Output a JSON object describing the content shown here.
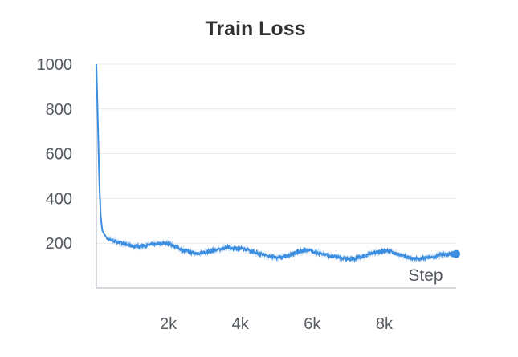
{
  "chart_data": {
    "type": "line",
    "title": "Train Loss",
    "xlabel": "Step",
    "ylabel": "",
    "xlim": [
      0,
      10000
    ],
    "ylim": [
      0,
      1000
    ],
    "x_ticks": [
      {
        "value": 2000,
        "label": "2k"
      },
      {
        "value": 4000,
        "label": "4k"
      },
      {
        "value": 6000,
        "label": "6k"
      },
      {
        "value": 8000,
        "label": "8k"
      }
    ],
    "y_ticks": [
      {
        "value": 200,
        "label": "200"
      },
      {
        "value": 400,
        "label": "400"
      },
      {
        "value": 600,
        "label": "600"
      },
      {
        "value": 800,
        "label": "800"
      },
      {
        "value": 1000,
        "label": "1000"
      }
    ],
    "grid": true,
    "legend": "none",
    "colors": {
      "line": "#3c8ee0",
      "raw_band": "#cfe2f6",
      "grid": "#e7e9ec",
      "axis": "#d5d8dc",
      "text": "#555a61",
      "title": "#333333"
    },
    "series": [
      {
        "x": [
          0,
          40,
          80,
          120,
          160,
          200,
          260,
          320,
          400,
          500,
          600,
          800,
          1000,
          1200,
          1400,
          1600,
          1800,
          2000,
          2200,
          2400,
          2600,
          2800,
          3000,
          3200,
          3400,
          3600,
          3800,
          4000,
          4200,
          4400,
          4600,
          4800,
          5000,
          5200,
          5400,
          5600,
          5800,
          6000,
          6200,
          6400,
          6600,
          6800,
          7000,
          7200,
          7400,
          7600,
          7800,
          8000,
          8200,
          8400,
          8600,
          8800,
          9000,
          9200,
          9400,
          9600,
          9800,
          10000
        ],
        "values": [
          1000,
          750,
          480,
          320,
          260,
          245,
          230,
          220,
          215,
          210,
          205,
          195,
          188,
          185,
          190,
          195,
          200,
          200,
          185,
          170,
          160,
          155,
          158,
          165,
          172,
          180,
          178,
          175,
          172,
          160,
          150,
          142,
          138,
          140,
          148,
          160,
          168,
          165,
          155,
          148,
          140,
          135,
          130,
          132,
          140,
          152,
          160,
          168,
          162,
          150,
          138,
          132,
          130,
          135,
          140,
          148,
          152,
          152
        ]
      }
    ]
  }
}
